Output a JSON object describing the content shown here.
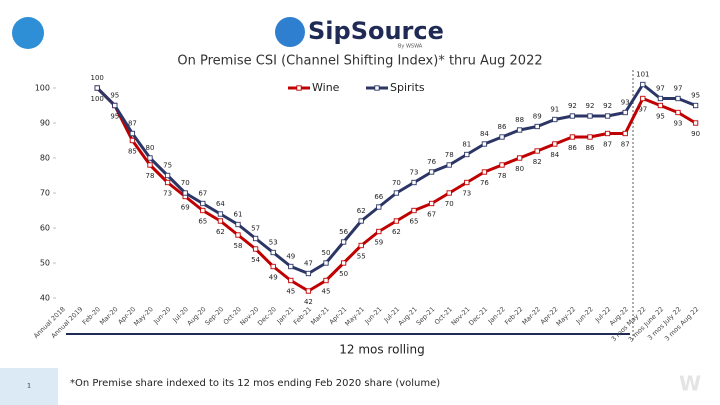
{
  "header": {
    "logo": "SipSource",
    "logo_sub": "By WSWA"
  },
  "chart_data": {
    "type": "line",
    "title": "On Premise CSI (Channel Shifting Index)* thru Aug 2022",
    "categories": [
      "Annual 2018",
      "Annual 2019",
      "Feb-20",
      "Mar-20",
      "Apr-20",
      "May-20",
      "Jun-20",
      "Jul-20",
      "Aug-20",
      "Sep-20",
      "Oct-20",
      "Nov-20",
      "Dec-20",
      "Jan-21",
      "Feb-21",
      "Mar-21",
      "Apr-21",
      "May-21",
      "Jun-21",
      "Jul-21",
      "Aug-21",
      "Sep-21",
      "Oct-21",
      "Nov-21",
      "Dec-21",
      "Jan-22",
      "Feb-22",
      "Mar-22",
      "Apr-22",
      "May-22",
      "Jun-22",
      "Jul-22",
      "Aug-22",
      "3 mos May 22",
      "3 mos June 22",
      "3 mos July 22",
      "3 mos Aug 22"
    ],
    "series": [
      {
        "name": "Wine",
        "color": "#c00000",
        "label_side": "below",
        "values": [
          null,
          null,
          100,
          95,
          85,
          78,
          73,
          69,
          65,
          62,
          58,
          54,
          49,
          45,
          42,
          45,
          50,
          55,
          59,
          62,
          65,
          67,
          70,
          73,
          76,
          78,
          80,
          82,
          84,
          86,
          86,
          87,
          87,
          97,
          95,
          93,
          90
        ]
      },
      {
        "name": "Spirits",
        "color": "#2b3566",
        "label_side": "above",
        "values": [
          null,
          null,
          100,
          95,
          87,
          80,
          75,
          70,
          67,
          64,
          61,
          57,
          53,
          49,
          47,
          50,
          56,
          62,
          66,
          70,
          73,
          76,
          78,
          81,
          84,
          86,
          88,
          89,
          91,
          92,
          92,
          92,
          93,
          101,
          97,
          97,
          95
        ]
      }
    ],
    "ylim": [
      40,
      103
    ],
    "yticks": [
      40,
      50,
      60,
      70,
      80,
      90,
      100
    ],
    "grid": false,
    "legend": "top",
    "annotation": "12 mos rolling"
  },
  "footnote": "*On Premise share indexed to its 12 mos ending Feb 2020 share (volume)",
  "slide_number": 1
}
